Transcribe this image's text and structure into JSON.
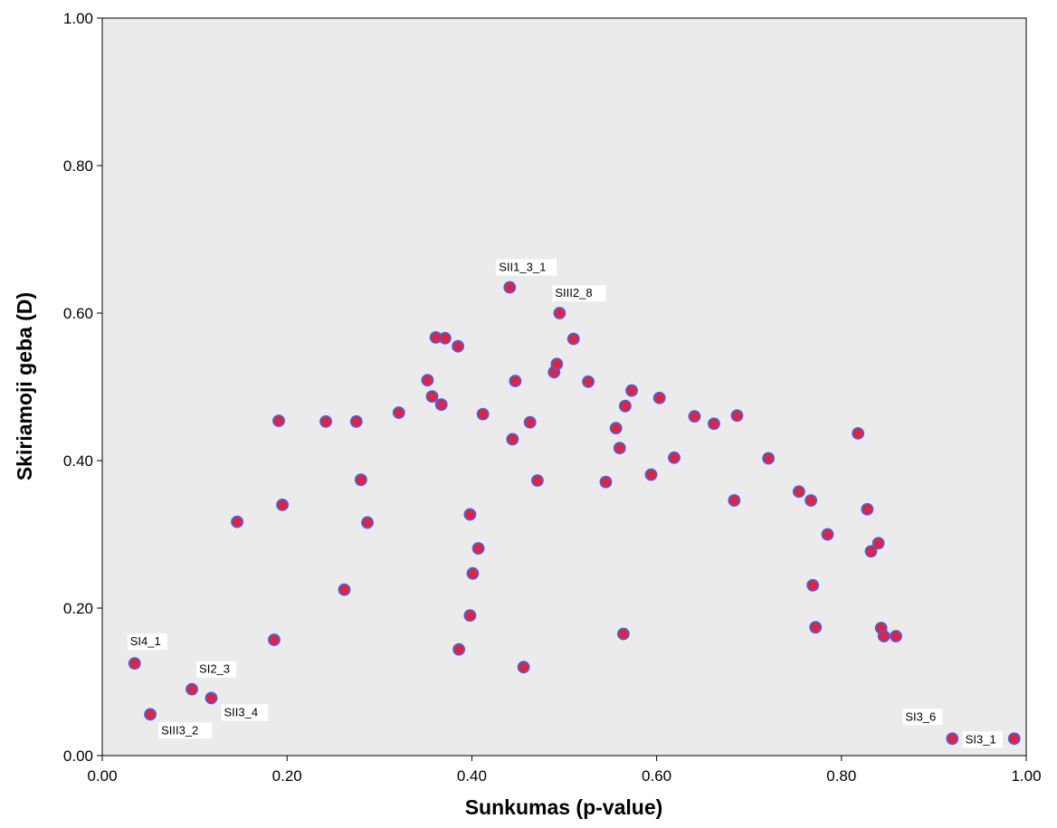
{
  "chart_data": {
    "type": "scatter",
    "title": "",
    "xlabel": "Sunkumas (p-value)",
    "ylabel": "Skiriamoji geba (D)",
    "xlim": [
      0,
      1
    ],
    "ylim": [
      0,
      1
    ],
    "xticks": [
      "0.00",
      "0.20",
      "0.40",
      "0.60",
      "0.80",
      "1.00"
    ],
    "yticks": [
      "0.00",
      "0.20",
      "0.40",
      "0.60",
      "0.80",
      "1.00"
    ],
    "grid": false,
    "background": "#ebebeb",
    "marker_fill": "#e8203a",
    "marker_edge": "#4b5ce0",
    "points": [
      {
        "x": 0.035,
        "y": 0.125,
        "label": "SI4_1"
      },
      {
        "x": 0.052,
        "y": 0.056,
        "label": "SIII3_2"
      },
      {
        "x": 0.097,
        "y": 0.09,
        "label": "SI2_3"
      },
      {
        "x": 0.118,
        "y": 0.078,
        "label": "SII3_4"
      },
      {
        "x": 0.146,
        "y": 0.317
      },
      {
        "x": 0.186,
        "y": 0.157
      },
      {
        "x": 0.191,
        "y": 0.454
      },
      {
        "x": 0.195,
        "y": 0.34
      },
      {
        "x": 0.242,
        "y": 0.453
      },
      {
        "x": 0.262,
        "y": 0.225
      },
      {
        "x": 0.275,
        "y": 0.453
      },
      {
        "x": 0.28,
        "y": 0.374
      },
      {
        "x": 0.287,
        "y": 0.316
      },
      {
        "x": 0.321,
        "y": 0.465
      },
      {
        "x": 0.352,
        "y": 0.509
      },
      {
        "x": 0.357,
        "y": 0.487
      },
      {
        "x": 0.361,
        "y": 0.567
      },
      {
        "x": 0.367,
        "y": 0.476
      },
      {
        "x": 0.371,
        "y": 0.566
      },
      {
        "x": 0.385,
        "y": 0.555
      },
      {
        "x": 0.386,
        "y": 0.144
      },
      {
        "x": 0.398,
        "y": 0.327
      },
      {
        "x": 0.398,
        "y": 0.19
      },
      {
        "x": 0.401,
        "y": 0.247
      },
      {
        "x": 0.407,
        "y": 0.281
      },
      {
        "x": 0.412,
        "y": 0.463
      },
      {
        "x": 0.441,
        "y": 0.635,
        "label": "SII1_3_1"
      },
      {
        "x": 0.444,
        "y": 0.429
      },
      {
        "x": 0.447,
        "y": 0.508
      },
      {
        "x": 0.456,
        "y": 0.12
      },
      {
        "x": 0.463,
        "y": 0.452
      },
      {
        "x": 0.471,
        "y": 0.373
      },
      {
        "x": 0.489,
        "y": 0.52
      },
      {
        "x": 0.492,
        "y": 0.531
      },
      {
        "x": 0.495,
        "y": 0.6,
        "label": "SIII2_8"
      },
      {
        "x": 0.51,
        "y": 0.565
      },
      {
        "x": 0.526,
        "y": 0.507
      },
      {
        "x": 0.545,
        "y": 0.371
      },
      {
        "x": 0.556,
        "y": 0.444
      },
      {
        "x": 0.56,
        "y": 0.417
      },
      {
        "x": 0.564,
        "y": 0.165
      },
      {
        "x": 0.566,
        "y": 0.474
      },
      {
        "x": 0.573,
        "y": 0.495
      },
      {
        "x": 0.594,
        "y": 0.381
      },
      {
        "x": 0.603,
        "y": 0.485
      },
      {
        "x": 0.619,
        "y": 0.404
      },
      {
        "x": 0.641,
        "y": 0.46
      },
      {
        "x": 0.662,
        "y": 0.45
      },
      {
        "x": 0.684,
        "y": 0.346
      },
      {
        "x": 0.687,
        "y": 0.461
      },
      {
        "x": 0.721,
        "y": 0.403
      },
      {
        "x": 0.754,
        "y": 0.358
      },
      {
        "x": 0.767,
        "y": 0.346
      },
      {
        "x": 0.769,
        "y": 0.231
      },
      {
        "x": 0.772,
        "y": 0.174
      },
      {
        "x": 0.785,
        "y": 0.3
      },
      {
        "x": 0.818,
        "y": 0.437
      },
      {
        "x": 0.828,
        "y": 0.334
      },
      {
        "x": 0.832,
        "y": 0.277
      },
      {
        "x": 0.84,
        "y": 0.288
      },
      {
        "x": 0.843,
        "y": 0.173
      },
      {
        "x": 0.846,
        "y": 0.162
      },
      {
        "x": 0.859,
        "y": 0.162
      },
      {
        "x": 0.92,
        "y": 0.023,
        "label": "SI3_6"
      },
      {
        "x": 0.987,
        "y": 0.023,
        "label": "SI3_1"
      }
    ]
  }
}
